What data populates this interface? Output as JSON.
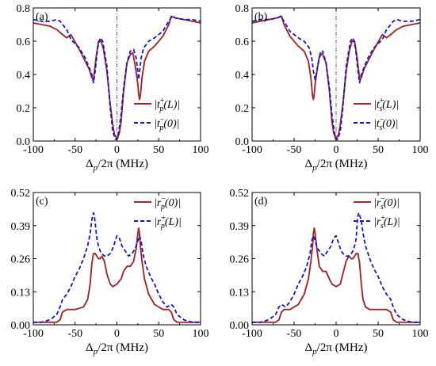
{
  "figure": {
    "colors": {
      "solid": "#a0282d",
      "dashed": "#1414c8",
      "axis": "#000000",
      "zero_line": "#555555"
    }
  },
  "chart_data": [
    {
      "type": "line",
      "panel_label": "(a)",
      "xlabel": "Δp/2π (MHz)",
      "xlabel_main": "Δ",
      "xlabel_sub": "p",
      "xlabel_rest": "/2π (MHz)",
      "xlim": [
        -100,
        100
      ],
      "ylim": [
        0,
        0.8
      ],
      "xticks": [
        -100,
        -50,
        0,
        50,
        100
      ],
      "yticks": [
        0.0,
        0.2,
        0.4,
        0.6,
        0.8
      ],
      "ytick_labels": [
        "0.0",
        "0.2",
        "0.4",
        "0.6",
        "0.8"
      ],
      "vertical_line_x": 0,
      "legend_position": "bottom-right",
      "series": [
        {
          "name": "|t_p^+(L)|",
          "legend_base": "|t",
          "legend_sub": "p",
          "legend_sup": "+",
          "legend_arg": "(L)|",
          "style": "solid",
          "x": [
            -100,
            -90,
            -80,
            -72,
            -65,
            -60,
            -55,
            -45,
            -38,
            -33,
            -30,
            -28,
            -25,
            -22,
            -19,
            -16,
            -12,
            -8,
            -5,
            -3,
            -1,
            0,
            1,
            3,
            5,
            8,
            12,
            16,
            19,
            22,
            25,
            26,
            27,
            28,
            30,
            33,
            38,
            45,
            55,
            62,
            65,
            70,
            80,
            90,
            100
          ],
          "y": [
            0.71,
            0.7,
            0.69,
            0.67,
            0.64,
            0.62,
            0.64,
            0.55,
            0.48,
            0.43,
            0.38,
            0.37,
            0.5,
            0.6,
            0.6,
            0.55,
            0.42,
            0.22,
            0.1,
            0.04,
            0.02,
            0.01,
            0.02,
            0.05,
            0.12,
            0.3,
            0.47,
            0.52,
            0.53,
            0.45,
            0.34,
            0.28,
            0.25,
            0.27,
            0.38,
            0.48,
            0.54,
            0.57,
            0.63,
            0.7,
            0.75,
            0.74,
            0.73,
            0.72,
            0.71
          ]
        },
        {
          "name": "|t_p^-(0)|",
          "legend_base": "|t",
          "legend_sub": "p",
          "legend_sup": "−",
          "legend_arg": "(0)|",
          "style": "dashed",
          "x": [
            -100,
            -90,
            -80,
            -72,
            -68,
            -65,
            -60,
            -55,
            -45,
            -38,
            -33,
            -30,
            -28,
            -26,
            -23,
            -20,
            -17,
            -12,
            -8,
            -5,
            -2,
            0,
            2,
            5,
            8,
            12,
            16,
            20,
            23,
            25,
            26,
            27,
            29,
            32,
            38,
            45,
            55,
            62,
            66,
            70,
            80,
            90,
            100
          ],
          "y": [
            0.73,
            0.72,
            0.72,
            0.73,
            0.72,
            0.7,
            0.67,
            0.61,
            0.56,
            0.5,
            0.44,
            0.4,
            0.35,
            0.42,
            0.56,
            0.62,
            0.6,
            0.45,
            0.2,
            0.06,
            0.01,
            0.01,
            0.05,
            0.16,
            0.32,
            0.47,
            0.54,
            0.55,
            0.5,
            0.42,
            0.37,
            0.42,
            0.5,
            0.56,
            0.6,
            0.62,
            0.66,
            0.72,
            0.75,
            0.74,
            0.73,
            0.73,
            0.72
          ]
        }
      ]
    },
    {
      "type": "line",
      "panel_label": "(b)",
      "xlabel": "Δp/2π (MHz)",
      "xlabel_main": "Δ",
      "xlabel_sub": "p",
      "xlabel_rest": "/2π (MHz)",
      "xlim": [
        -100,
        100
      ],
      "ylim": [
        0,
        0.8
      ],
      "xticks": [
        -100,
        -50,
        0,
        50,
        100
      ],
      "yticks": [
        0.0,
        0.2,
        0.4,
        0.6,
        0.8
      ],
      "ytick_labels": [
        "0.0",
        "0.2",
        "0.4",
        "0.6",
        "0.8"
      ],
      "vertical_line_x": 0,
      "legend_position": "bottom-right",
      "series": [
        {
          "name": "|t_s^+(L)|",
          "legend_base": "|t",
          "legend_sub": "s",
          "legend_sup": "+",
          "legend_arg": "(L)|",
          "style": "solid",
          "x": [
            -100,
            -90,
            -80,
            -70,
            -65,
            -62,
            -55,
            -45,
            -38,
            -33,
            -30,
            -28,
            -27,
            -26,
            -25,
            -22,
            -19,
            -16,
            -12,
            -8,
            -5,
            -3,
            -1,
            0,
            1,
            3,
            5,
            8,
            12,
            16,
            19,
            22,
            25,
            28,
            30,
            33,
            38,
            45,
            55,
            60,
            65,
            72,
            80,
            90,
            100
          ],
          "y": [
            0.71,
            0.72,
            0.73,
            0.74,
            0.75,
            0.7,
            0.63,
            0.57,
            0.54,
            0.48,
            0.38,
            0.27,
            0.25,
            0.28,
            0.34,
            0.45,
            0.53,
            0.52,
            0.47,
            0.3,
            0.12,
            0.05,
            0.02,
            0.01,
            0.02,
            0.04,
            0.1,
            0.22,
            0.42,
            0.55,
            0.6,
            0.6,
            0.5,
            0.37,
            0.38,
            0.43,
            0.48,
            0.55,
            0.64,
            0.62,
            0.64,
            0.67,
            0.69,
            0.7,
            0.71
          ]
        },
        {
          "name": "|t_s^-(0)|",
          "legend_base": "|t",
          "legend_sub": "s",
          "legend_sup": "−",
          "legend_arg": "(0)|",
          "style": "dashed",
          "x": [
            -100,
            -90,
            -80,
            -70,
            -66,
            -62,
            -55,
            -45,
            -38,
            -32,
            -29,
            -27,
            -25,
            -23,
            -20,
            -16,
            -12,
            -8,
            -5,
            -2,
            0,
            2,
            5,
            8,
            12,
            17,
            20,
            23,
            26,
            28,
            30,
            33,
            38,
            45,
            55,
            60,
            65,
            68,
            72,
            80,
            90,
            100
          ],
          "y": [
            0.72,
            0.73,
            0.73,
            0.74,
            0.75,
            0.72,
            0.66,
            0.62,
            0.6,
            0.56,
            0.5,
            0.42,
            0.37,
            0.42,
            0.5,
            0.54,
            0.47,
            0.32,
            0.16,
            0.05,
            0.01,
            0.01,
            0.06,
            0.2,
            0.45,
            0.6,
            0.62,
            0.56,
            0.42,
            0.35,
            0.4,
            0.44,
            0.5,
            0.56,
            0.61,
            0.67,
            0.7,
            0.72,
            0.73,
            0.72,
            0.72,
            0.73
          ]
        }
      ]
    },
    {
      "type": "line",
      "panel_label": "(c)",
      "xlabel": "Δp/2π (MHz)",
      "xlabel_main": "Δ",
      "xlabel_sub": "p",
      "xlabel_rest": "/2π (MHz)",
      "xlim": [
        -100,
        100
      ],
      "ylim": [
        0,
        0.52
      ],
      "xticks": [
        -100,
        -50,
        0,
        50,
        100
      ],
      "yticks": [
        0.0,
        0.13,
        0.26,
        0.39,
        0.52
      ],
      "ytick_labels": [
        "0.00",
        "0.13",
        "0.26",
        "0.39",
        "0.52"
      ],
      "legend_position": "top-right",
      "series": [
        {
          "name": "|r_p^-(0)|",
          "legend_base": "|r",
          "legend_sub": "p",
          "legend_sup": "−",
          "legend_arg": "(0)|",
          "style": "solid",
          "x": [
            -100,
            -90,
            -80,
            -72,
            -68,
            -65,
            -60,
            -50,
            -40,
            -35,
            -32,
            -30,
            -28,
            -26,
            -24,
            -22,
            -20,
            -18,
            -15,
            -12,
            -8,
            -5,
            0,
            5,
            8,
            12,
            16,
            20,
            23,
            25,
            26,
            27,
            28,
            30,
            33,
            38,
            45,
            55,
            62,
            65,
            68,
            72,
            80,
            90,
            100
          ],
          "y": [
            0.01,
            0.01,
            0.01,
            0.01,
            0.02,
            0.05,
            0.06,
            0.06,
            0.07,
            0.1,
            0.16,
            0.24,
            0.28,
            0.28,
            0.27,
            0.26,
            0.26,
            0.27,
            0.25,
            0.2,
            0.16,
            0.15,
            0.16,
            0.18,
            0.21,
            0.23,
            0.23,
            0.25,
            0.3,
            0.36,
            0.38,
            0.36,
            0.31,
            0.25,
            0.18,
            0.12,
            0.08,
            0.06,
            0.06,
            0.05,
            0.02,
            0.01,
            0.01,
            0.01,
            0.01
          ]
        },
        {
          "name": "|r_p^+(L)|",
          "legend_base": "|r",
          "legend_sub": "p",
          "legend_sup": "+",
          "legend_arg": "(L)|",
          "style": "dashed",
          "x": [
            -100,
            -90,
            -80,
            -72,
            -68,
            -65,
            -60,
            -55,
            -50,
            -45,
            -40,
            -35,
            -32,
            -30,
            -29,
            -28,
            -27,
            -26,
            -24,
            -22,
            -20,
            -18,
            -15,
            -12,
            -8,
            -5,
            -2,
            0,
            3,
            6,
            10,
            14,
            18,
            22,
            25,
            27,
            29,
            31,
            35,
            40,
            45,
            50,
            55,
            60,
            65,
            68,
            72,
            80,
            90,
            100
          ],
          "y": [
            0.01,
            0.01,
            0.02,
            0.04,
            0.07,
            0.1,
            0.12,
            0.15,
            0.19,
            0.22,
            0.26,
            0.31,
            0.36,
            0.41,
            0.43,
            0.44,
            0.43,
            0.4,
            0.34,
            0.31,
            0.29,
            0.28,
            0.27,
            0.27,
            0.28,
            0.3,
            0.33,
            0.35,
            0.34,
            0.31,
            0.29,
            0.27,
            0.28,
            0.3,
            0.33,
            0.35,
            0.33,
            0.28,
            0.23,
            0.19,
            0.16,
            0.12,
            0.09,
            0.07,
            0.08,
            0.07,
            0.04,
            0.02,
            0.01,
            0.01
          ]
        }
      ]
    },
    {
      "type": "line",
      "panel_label": "(d)",
      "xlabel": "Δp/2π (MHz)",
      "xlabel_main": "Δ",
      "xlabel_sub": "p",
      "xlabel_rest": "/2π (MHz)",
      "xlim": [
        -100,
        100
      ],
      "ylim": [
        0,
        0.52
      ],
      "xticks": [
        -100,
        -50,
        0,
        50,
        100
      ],
      "yticks": [
        0.0,
        0.13,
        0.26,
        0.39,
        0.52
      ],
      "ytick_labels": [
        "0.00",
        "0.13",
        "0.26",
        "0.39",
        "0.52"
      ],
      "legend_position": "top-right",
      "series": [
        {
          "name": "|r_s^-(0)|",
          "legend_base": "|r",
          "legend_sub": "s",
          "legend_sup": "−",
          "legend_arg": "(0)|",
          "style": "solid",
          "x": [
            -100,
            -90,
            -80,
            -72,
            -68,
            -65,
            -62,
            -55,
            -45,
            -38,
            -33,
            -30,
            -28,
            -27,
            -26,
            -25,
            -23,
            -20,
            -16,
            -12,
            -8,
            -5,
            0,
            5,
            8,
            12,
            15,
            18,
            20,
            22,
            24,
            26,
            28,
            30,
            32,
            35,
            40,
            50,
            60,
            65,
            68,
            72,
            80,
            90,
            100
          ],
          "y": [
            0.01,
            0.01,
            0.01,
            0.01,
            0.02,
            0.05,
            0.06,
            0.06,
            0.08,
            0.12,
            0.18,
            0.25,
            0.31,
            0.36,
            0.38,
            0.36,
            0.3,
            0.23,
            0.21,
            0.21,
            0.18,
            0.16,
            0.15,
            0.16,
            0.2,
            0.25,
            0.27,
            0.26,
            0.26,
            0.27,
            0.28,
            0.28,
            0.24,
            0.16,
            0.1,
            0.07,
            0.06,
            0.06,
            0.06,
            0.05,
            0.02,
            0.01,
            0.01,
            0.01,
            0.01
          ]
        },
        {
          "name": "|r_s^+(L)|",
          "legend_base": "|r",
          "legend_sub": "s",
          "legend_sup": "+",
          "legend_arg": "(L)|",
          "style": "dashed",
          "x": [
            -100,
            -90,
            -80,
            -72,
            -68,
            -65,
            -60,
            -55,
            -50,
            -45,
            -40,
            -35,
            -31,
            -29,
            -27,
            -25,
            -22,
            -18,
            -14,
            -10,
            -6,
            -3,
            0,
            2,
            5,
            8,
            12,
            15,
            18,
            20,
            22,
            24,
            25,
            26,
            27,
            28,
            30,
            32,
            35,
            40,
            45,
            50,
            55,
            60,
            65,
            68,
            72,
            80,
            90,
            100
          ],
          "y": [
            0.01,
            0.01,
            0.02,
            0.04,
            0.07,
            0.08,
            0.07,
            0.09,
            0.12,
            0.16,
            0.19,
            0.23,
            0.28,
            0.33,
            0.35,
            0.33,
            0.3,
            0.28,
            0.27,
            0.29,
            0.31,
            0.34,
            0.35,
            0.33,
            0.3,
            0.28,
            0.27,
            0.27,
            0.28,
            0.29,
            0.31,
            0.34,
            0.4,
            0.43,
            0.44,
            0.43,
            0.41,
            0.36,
            0.31,
            0.26,
            0.22,
            0.19,
            0.15,
            0.12,
            0.1,
            0.07,
            0.04,
            0.02,
            0.01,
            0.01
          ]
        }
      ]
    }
  ]
}
